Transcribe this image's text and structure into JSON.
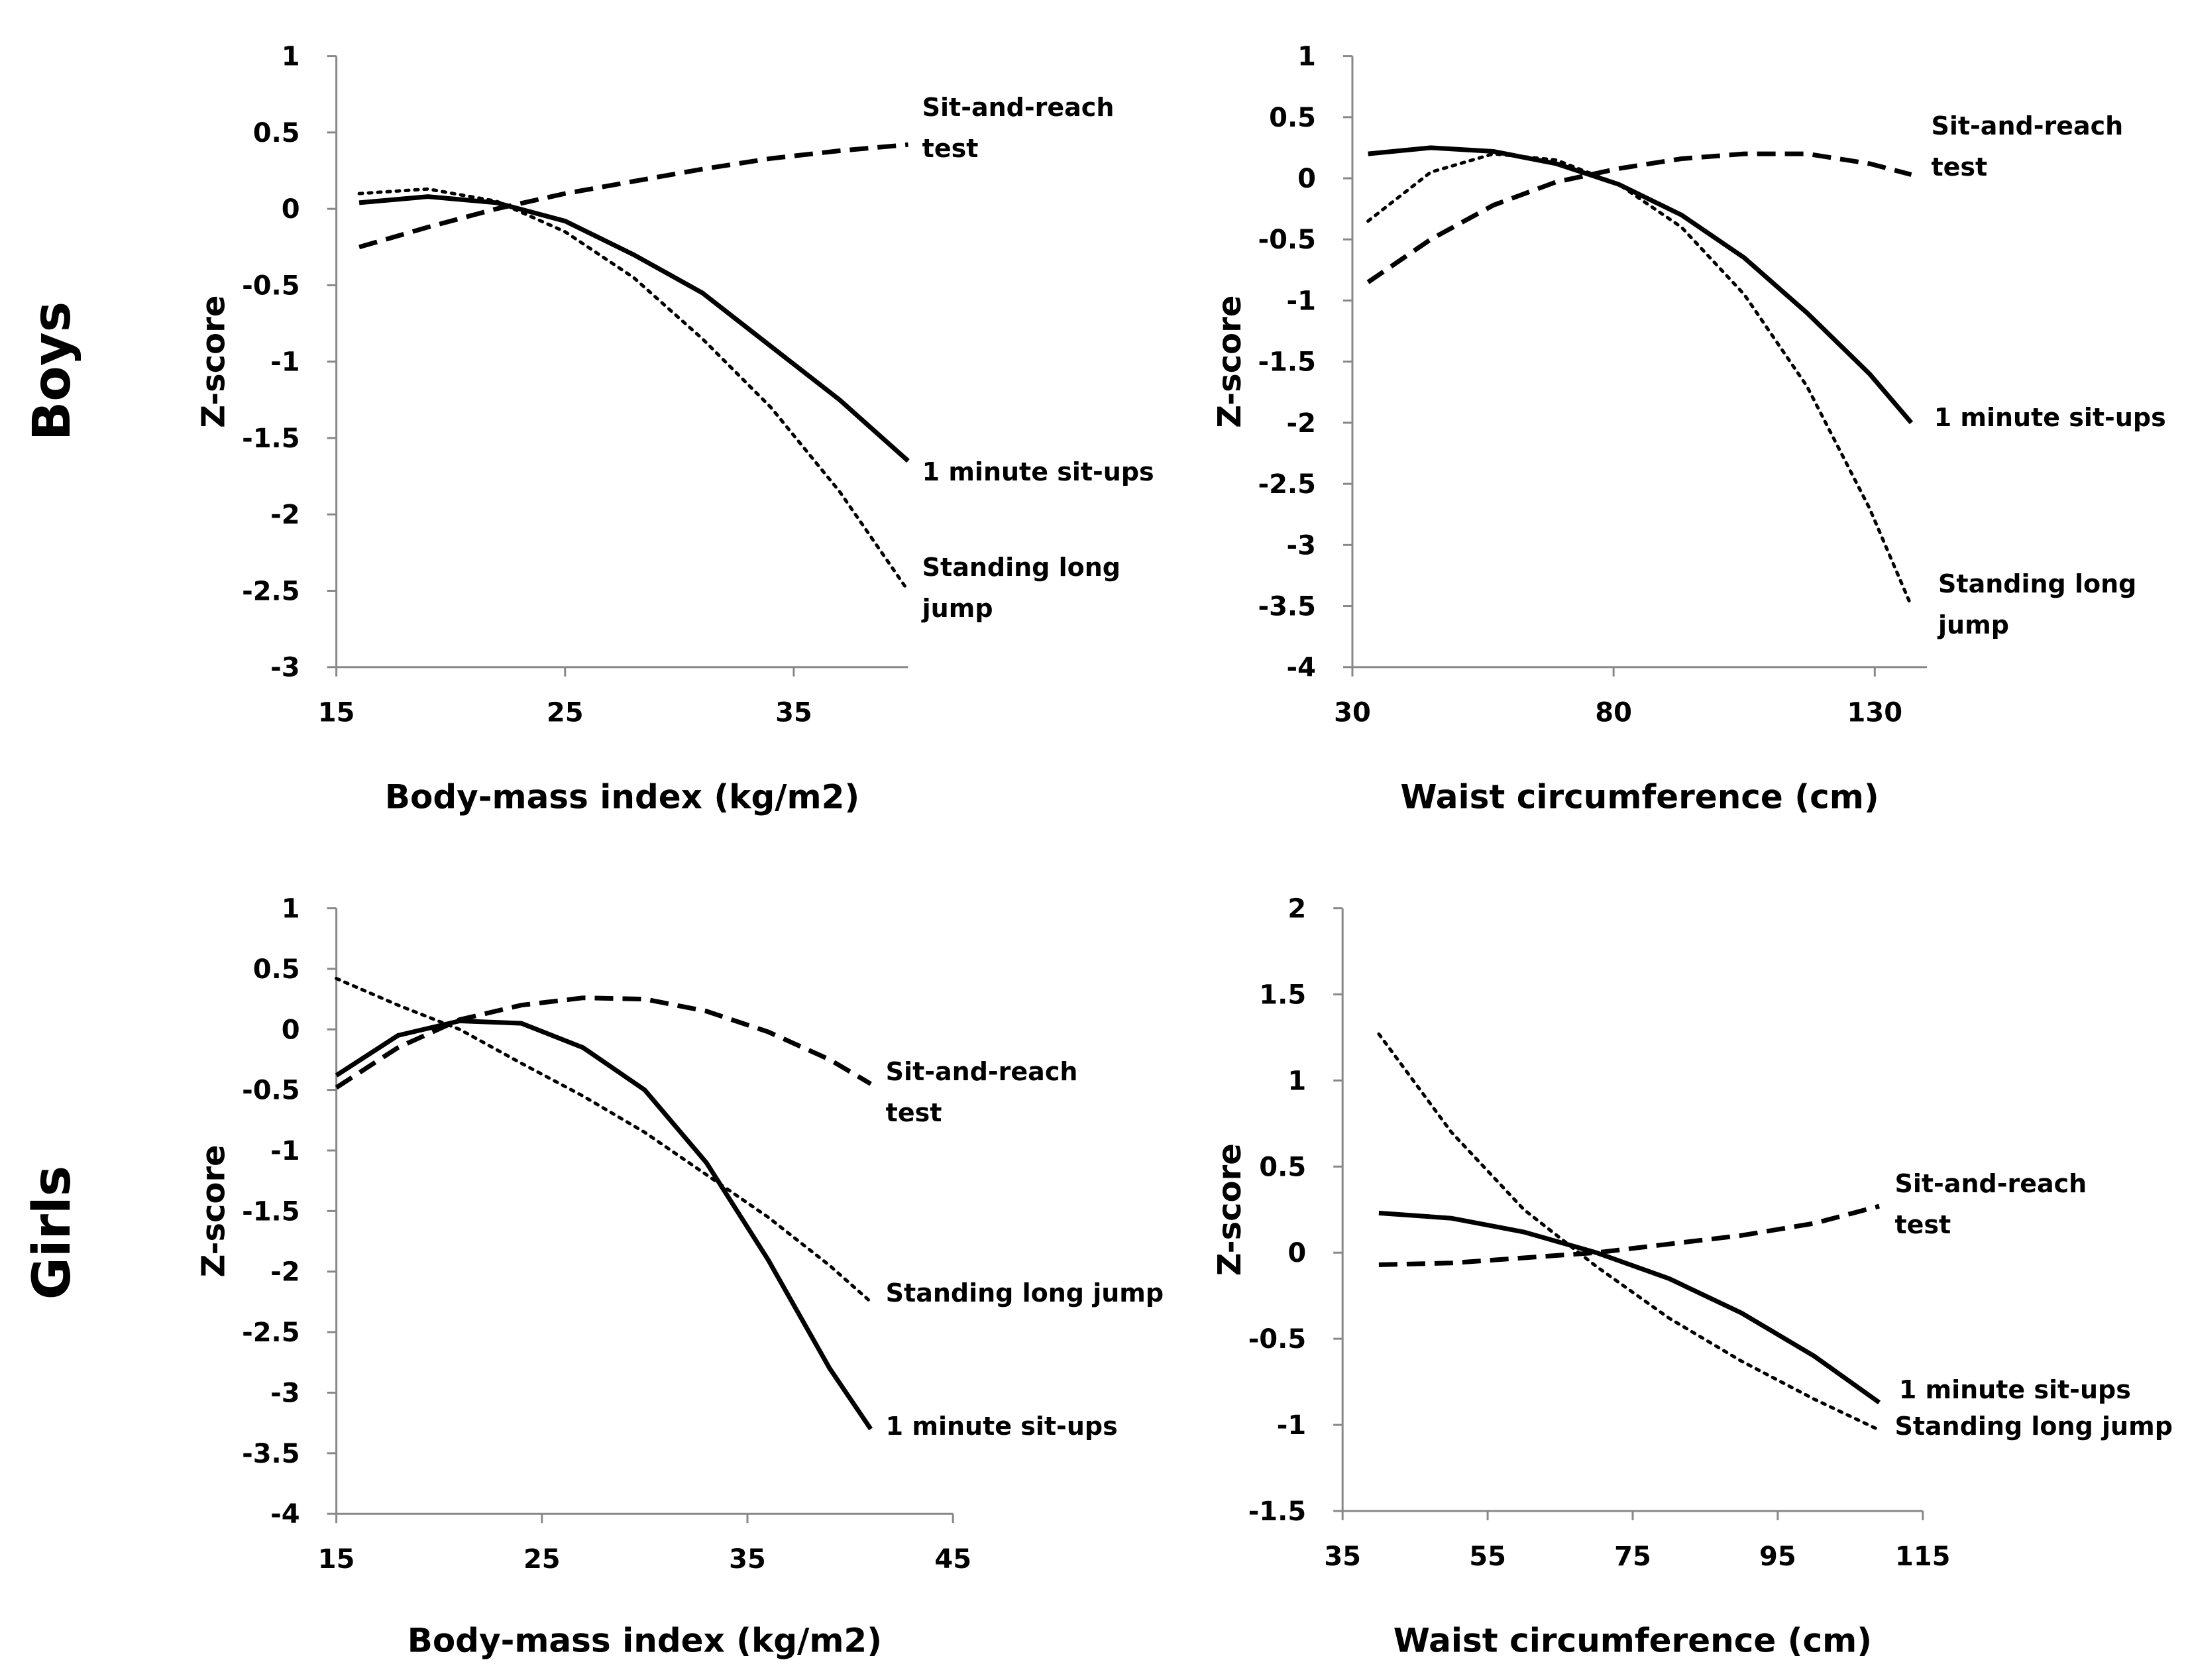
{
  "row_labels": [
    "Boys",
    "Girls"
  ],
  "chart_data": [
    {
      "type": "line",
      "xlabel": "Body-mass index (kg/m2)",
      "ylabel": "Z-score",
      "x": [
        16,
        19,
        22,
        25,
        28,
        31,
        34,
        37,
        40
      ],
      "xlim": [
        15,
        40
      ],
      "xticks": [
        15,
        25,
        35
      ],
      "ylim": [
        -3,
        1
      ],
      "yticks": [
        -3,
        -2.5,
        -2,
        -1.5,
        -1,
        -0.5,
        0,
        0.5,
        1
      ],
      "series": [
        {
          "name": "Sit-and-reach test",
          "color": "#000000",
          "dash": "dashed",
          "values": [
            -0.25,
            -0.12,
            0,
            0.1,
            0.18,
            0.26,
            0.33,
            0.38,
            0.42
          ]
        },
        {
          "name": "1 minute sit-ups",
          "color": "#000000",
          "dash": "solid",
          "values": [
            0.04,
            0.08,
            0.04,
            -0.08,
            -0.3,
            -0.55,
            -0.9,
            -1.25,
            -1.65
          ]
        },
        {
          "name": "Standing long jump",
          "color": "#000000",
          "dash": "dotted",
          "values": [
            0.1,
            0.13,
            0.05,
            -0.15,
            -0.45,
            -0.85,
            -1.3,
            -1.85,
            -2.5
          ]
        }
      ]
    },
    {
      "type": "line",
      "xlabel": "Waist circumference  (cm)",
      "ylabel": "Z-score",
      "x": [
        33,
        45,
        57,
        69,
        81,
        93,
        105,
        117,
        129,
        137
      ],
      "xlim": [
        30,
        140
      ],
      "xticks": [
        30,
        80,
        130
      ],
      "ylim": [
        -4,
        1
      ],
      "yticks": [
        -4,
        -3.5,
        -3,
        -2.5,
        -2,
        -1.5,
        -1,
        -0.5,
        0,
        0.5,
        1
      ],
      "series": [
        {
          "name": "Sit-and-reach test",
          "color": "#000000",
          "dash": "dashed",
          "values": [
            -0.85,
            -0.5,
            -0.22,
            -0.03,
            0.08,
            0.16,
            0.2,
            0.2,
            0.12,
            0.03
          ]
        },
        {
          "name": "1 minute sit-ups",
          "color": "#000000",
          "dash": "solid",
          "values": [
            0.2,
            0.25,
            0.22,
            0.12,
            -0.05,
            -0.3,
            -0.65,
            -1.1,
            -1.6,
            -2.0
          ]
        },
        {
          "name": "Standing long jump",
          "color": "#000000",
          "dash": "dotted",
          "values": [
            -0.35,
            0.05,
            0.2,
            0.15,
            -0.05,
            -0.4,
            -0.95,
            -1.7,
            -2.7,
            -3.5
          ]
        }
      ]
    },
    {
      "type": "line",
      "xlabel": "Body-mass index (kg/m2)",
      "ylabel": "Z-score",
      "x": [
        15,
        18,
        21,
        24,
        27,
        30,
        33,
        36,
        39,
        41
      ],
      "xlim": [
        15,
        45
      ],
      "xticks": [
        15,
        25,
        35,
        45
      ],
      "ylim": [
        -4,
        1
      ],
      "yticks": [
        -4,
        -3.5,
        -3,
        -2.5,
        -2,
        -1.5,
        -1,
        -0.5,
        0,
        0.5,
        1
      ],
      "series": [
        {
          "name": "Sit-and-reach test",
          "color": "#000000",
          "dash": "dashed",
          "values": [
            -0.48,
            -0.15,
            0.08,
            0.2,
            0.26,
            0.25,
            0.15,
            -0.02,
            -0.25,
            -0.45
          ]
        },
        {
          "name": "Standing long jump",
          "color": "#000000",
          "dash": "dotted",
          "values": [
            0.42,
            0.2,
            0,
            -0.28,
            -0.55,
            -0.85,
            -1.2,
            -1.55,
            -1.95,
            -2.25
          ]
        },
        {
          "name": "1 minute sit-ups",
          "color": "#000000",
          "dash": "solid",
          "values": [
            -0.38,
            -0.05,
            0.07,
            0.05,
            -0.15,
            -0.5,
            -1.1,
            -1.9,
            -2.8,
            -3.3
          ]
        }
      ]
    },
    {
      "type": "line",
      "xlabel": "Waist circumference (cm)",
      "ylabel": "Z-score",
      "x": [
        40,
        50,
        60,
        70,
        80,
        90,
        100,
        109
      ],
      "xlim": [
        35,
        115
      ],
      "xticks": [
        35,
        55,
        75,
        95,
        115
      ],
      "ylim": [
        -1.5,
        2
      ],
      "yticks": [
        -1.5,
        -1,
        -0.5,
        0,
        0.5,
        1,
        1.5,
        2
      ],
      "series": [
        {
          "name": "Sit-and-reach test",
          "color": "#000000",
          "dash": "dashed",
          "values": [
            -0.07,
            -0.06,
            -0.03,
            0.0,
            0.05,
            0.1,
            0.17,
            0.27
          ]
        },
        {
          "name": "1 minute sit-ups",
          "color": "#000000",
          "dash": "solid",
          "values": [
            0.23,
            0.2,
            0.12,
            0.0,
            -0.15,
            -0.35,
            -0.6,
            -0.87
          ]
        },
        {
          "name": "Standing long jump",
          "color": "#000000",
          "dash": "dotted",
          "values": [
            1.27,
            0.7,
            0.25,
            -0.08,
            -0.38,
            -0.63,
            -0.85,
            -1.03
          ]
        }
      ]
    }
  ]
}
